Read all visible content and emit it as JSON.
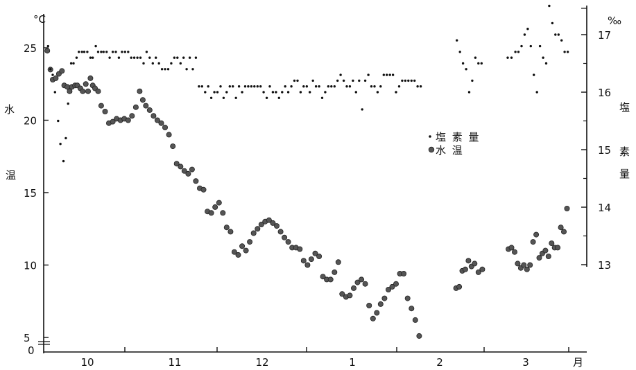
{
  "chart_data": {
    "type": "scatter",
    "x_axis": {
      "unit_label": "月",
      "ticks": [
        "10",
        "11",
        "12",
        "1",
        "2",
        "3"
      ]
    },
    "left_axis": {
      "title_chars": [
        "水",
        "温"
      ],
      "unit": "°C",
      "ticks": [
        "25",
        "20",
        "15",
        "10",
        "5",
        "0"
      ],
      "range": [
        5,
        25
      ]
    },
    "right_axis": {
      "title_chars": [
        "塩",
        "素",
        "量"
      ],
      "unit": "‰",
      "ticks": [
        "17",
        "16",
        "15",
        "14",
        "13"
      ],
      "range": [
        13,
        17
      ]
    },
    "legend": [
      {
        "symbol": "•",
        "label": "塩 素 量",
        "marker": "small-dot"
      },
      {
        "symbol": "●",
        "label": "水 温",
        "marker": "large-dot"
      }
    ],
    "colors": {
      "chlorinity": "#111111",
      "water_temp": "#555555"
    },
    "water_temperature": [
      [
        0.2,
        24.8
      ],
      [
        0.6,
        23.5
      ],
      [
        0.9,
        22.8
      ],
      [
        1.3,
        22.9
      ],
      [
        1.7,
        23.2
      ],
      [
        2.1,
        23.4
      ],
      [
        2.4,
        22.4
      ],
      [
        2.8,
        22.3
      ],
      [
        3.1,
        22.0
      ],
      [
        3.4,
        22.3
      ],
      [
        3.8,
        22.4
      ],
      [
        4.1,
        22.4
      ],
      [
        4.5,
        22.2
      ],
      [
        4.8,
        22.0
      ],
      [
        5.2,
        22.5
      ],
      [
        5.5,
        22.0
      ],
      [
        5.8,
        22.9
      ],
      [
        6.1,
        22.4
      ],
      [
        6.4,
        22.2
      ],
      [
        6.8,
        22.0
      ],
      [
        7.2,
        21.0
      ],
      [
        7.7,
        20.6
      ],
      [
        8.2,
        19.8
      ],
      [
        8.7,
        19.9
      ],
      [
        9.2,
        20.1
      ],
      [
        9.7,
        20.0
      ],
      [
        10.2,
        20.1
      ],
      [
        10.7,
        20.0
      ],
      [
        11.2,
        20.3
      ],
      [
        11.7,
        20.9
      ],
      [
        12.2,
        22.0
      ],
      [
        12.6,
        21.4
      ],
      [
        13.0,
        21.0
      ],
      [
        13.5,
        20.7
      ],
      [
        14.0,
        20.3
      ],
      [
        14.5,
        20.0
      ],
      [
        15.0,
        19.8
      ],
      [
        15.5,
        19.5
      ],
      [
        16.0,
        19.0
      ],
      [
        16.5,
        18.2
      ],
      [
        17.0,
        17.0
      ],
      [
        17.5,
        16.8
      ],
      [
        18.0,
        16.5
      ],
      [
        18.5,
        16.3
      ],
      [
        19.0,
        16.6
      ],
      [
        19.5,
        15.8
      ],
      [
        20.0,
        15.3
      ],
      [
        20.5,
        15.2
      ],
      [
        21.0,
        13.7
      ],
      [
        21.5,
        13.6
      ],
      [
        22.0,
        14.0
      ],
      [
        22.5,
        14.3
      ],
      [
        23.0,
        13.6
      ],
      [
        23.5,
        12.6
      ],
      [
        24.0,
        12.3
      ],
      [
        24.5,
        10.9
      ],
      [
        25.0,
        10.7
      ],
      [
        25.5,
        11.3
      ],
      [
        26.0,
        11.0
      ],
      [
        26.5,
        11.6
      ],
      [
        27.0,
        12.2
      ],
      [
        27.5,
        12.5
      ],
      [
        28.0,
        12.8
      ],
      [
        28.5,
        13.0
      ],
      [
        29.0,
        13.1
      ],
      [
        29.5,
        12.9
      ],
      [
        30.0,
        12.7
      ],
      [
        30.5,
        12.3
      ],
      [
        31.0,
        11.9
      ],
      [
        31.5,
        11.6
      ],
      [
        32.0,
        11.2
      ],
      [
        32.5,
        11.2
      ],
      [
        33.0,
        11.1
      ],
      [
        33.5,
        10.3
      ],
      [
        34.0,
        10.0
      ],
      [
        34.5,
        10.4
      ],
      [
        35.0,
        10.8
      ],
      [
        35.5,
        10.6
      ],
      [
        36.0,
        9.2
      ],
      [
        36.5,
        9.0
      ],
      [
        37.0,
        9.0
      ],
      [
        37.5,
        9.5
      ],
      [
        38.0,
        10.2
      ],
      [
        38.5,
        8.0
      ],
      [
        39.0,
        7.8
      ],
      [
        39.5,
        7.9
      ],
      [
        40.0,
        8.4
      ],
      [
        40.5,
        8.8
      ],
      [
        41.0,
        9.0
      ],
      [
        41.5,
        8.7
      ],
      [
        42.0,
        7.2
      ],
      [
        42.5,
        6.3
      ],
      [
        43.0,
        6.7
      ],
      [
        43.5,
        7.3
      ],
      [
        44.0,
        7.7
      ],
      [
        44.5,
        8.3
      ],
      [
        45.0,
        8.5
      ],
      [
        45.5,
        8.7
      ],
      [
        46.0,
        9.4
      ],
      [
        46.5,
        9.4
      ],
      [
        47.0,
        7.7
      ],
      [
        47.5,
        7.0
      ],
      [
        48.0,
        6.2
      ],
      [
        48.5,
        5.1
      ],
      [
        53.3,
        8.4
      ],
      [
        53.7,
        8.5
      ],
      [
        54.1,
        9.6
      ],
      [
        54.5,
        9.7
      ],
      [
        54.9,
        10.3
      ],
      [
        55.3,
        9.9
      ],
      [
        55.7,
        10.1
      ],
      [
        56.2,
        9.5
      ],
      [
        56.7,
        9.7
      ],
      [
        60.1,
        11.1
      ],
      [
        60.5,
        11.2
      ],
      [
        60.9,
        10.9
      ],
      [
        61.3,
        10.1
      ],
      [
        61.7,
        9.8
      ],
      [
        62.1,
        10.0
      ],
      [
        62.5,
        9.7
      ],
      [
        62.9,
        10.0
      ],
      [
        63.3,
        11.6
      ],
      [
        63.7,
        12.1
      ],
      [
        64.1,
        10.5
      ],
      [
        64.5,
        10.8
      ],
      [
        64.9,
        11.0
      ],
      [
        65.3,
        10.6
      ],
      [
        65.7,
        11.5
      ],
      [
        66.1,
        11.2
      ],
      [
        66.5,
        11.2
      ],
      [
        66.9,
        12.6
      ],
      [
        67.3,
        12.3
      ],
      [
        67.7,
        13.9
      ]
    ],
    "chlorinity": [
      [
        0.3,
        16.8
      ],
      [
        0.6,
        16.4
      ],
      [
        0.9,
        16.3
      ],
      [
        1.2,
        16.0
      ],
      [
        1.6,
        15.5
      ],
      [
        1.9,
        15.1
      ],
      [
        2.3,
        14.8
      ],
      [
        2.6,
        15.2
      ],
      [
        2.9,
        15.8
      ],
      [
        3.3,
        16.5
      ],
      [
        3.6,
        16.5
      ],
      [
        4.0,
        16.6
      ],
      [
        4.3,
        16.7
      ],
      [
        4.7,
        16.7
      ],
      [
        5.0,
        16.7
      ],
      [
        5.4,
        16.7
      ],
      [
        5.8,
        16.6
      ],
      [
        6.1,
        16.6
      ],
      [
        6.5,
        16.8
      ],
      [
        6.8,
        16.7
      ],
      [
        7.2,
        16.7
      ],
      [
        7.5,
        16.7
      ],
      [
        7.9,
        16.7
      ],
      [
        8.3,
        16.6
      ],
      [
        8.7,
        16.7
      ],
      [
        9.1,
        16.7
      ],
      [
        9.5,
        16.6
      ],
      [
        9.9,
        16.7
      ],
      [
        10.3,
        16.7
      ],
      [
        10.7,
        16.7
      ],
      [
        11.1,
        16.6
      ],
      [
        11.5,
        16.6
      ],
      [
        11.9,
        16.6
      ],
      [
        12.3,
        16.6
      ],
      [
        12.7,
        16.5
      ],
      [
        13.1,
        16.7
      ],
      [
        13.5,
        16.6
      ],
      [
        13.9,
        16.5
      ],
      [
        14.3,
        16.6
      ],
      [
        14.7,
        16.5
      ],
      [
        15.1,
        16.4
      ],
      [
        15.5,
        16.4
      ],
      [
        15.9,
        16.4
      ],
      [
        16.3,
        16.5
      ],
      [
        16.7,
        16.6
      ],
      [
        17.1,
        16.6
      ],
      [
        17.5,
        16.5
      ],
      [
        17.9,
        16.6
      ],
      [
        18.3,
        16.4
      ],
      [
        18.7,
        16.6
      ],
      [
        19.1,
        16.4
      ],
      [
        19.5,
        16.6
      ],
      [
        19.9,
        16.1
      ],
      [
        20.3,
        16.1
      ],
      [
        20.7,
        16.0
      ],
      [
        21.1,
        16.1
      ],
      [
        21.5,
        15.9
      ],
      [
        21.9,
        16.0
      ],
      [
        22.3,
        16.0
      ],
      [
        22.7,
        16.1
      ],
      [
        23.1,
        15.9
      ],
      [
        23.5,
        16.0
      ],
      [
        23.9,
        16.1
      ],
      [
        24.3,
        16.1
      ],
      [
        24.7,
        15.9
      ],
      [
        25.1,
        16.1
      ],
      [
        25.5,
        16.0
      ],
      [
        25.9,
        16.1
      ],
      [
        26.3,
        16.1
      ],
      [
        26.7,
        16.1
      ],
      [
        27.1,
        16.1
      ],
      [
        27.5,
        16.1
      ],
      [
        27.9,
        16.1
      ],
      [
        28.3,
        16.0
      ],
      [
        28.7,
        15.9
      ],
      [
        29.1,
        16.1
      ],
      [
        29.5,
        16.0
      ],
      [
        29.9,
        16.0
      ],
      [
        30.3,
        15.9
      ],
      [
        30.7,
        16.0
      ],
      [
        31.1,
        16.1
      ],
      [
        31.5,
        16.0
      ],
      [
        31.9,
        16.1
      ],
      [
        32.3,
        16.2
      ],
      [
        32.7,
        16.2
      ],
      [
        33.1,
        16.0
      ],
      [
        33.5,
        16.1
      ],
      [
        33.9,
        16.1
      ],
      [
        34.3,
        16.0
      ],
      [
        34.7,
        16.2
      ],
      [
        35.1,
        16.1
      ],
      [
        35.5,
        16.1
      ],
      [
        35.9,
        15.9
      ],
      [
        36.3,
        16.0
      ],
      [
        36.7,
        16.1
      ],
      [
        37.1,
        16.1
      ],
      [
        37.5,
        16.1
      ],
      [
        37.9,
        16.2
      ],
      [
        38.3,
        16.3
      ],
      [
        38.7,
        16.2
      ],
      [
        39.1,
        16.1
      ],
      [
        39.5,
        16.1
      ],
      [
        39.9,
        16.2
      ],
      [
        40.3,
        16.0
      ],
      [
        40.7,
        16.2
      ],
      [
        41.1,
        15.7
      ],
      [
        41.5,
        16.2
      ],
      [
        41.9,
        16.3
      ],
      [
        42.3,
        16.1
      ],
      [
        42.7,
        16.1
      ],
      [
        43.1,
        16.0
      ],
      [
        43.5,
        16.1
      ],
      [
        43.9,
        16.3
      ],
      [
        44.3,
        16.3
      ],
      [
        44.7,
        16.3
      ],
      [
        45.1,
        16.3
      ],
      [
        45.5,
        16.0
      ],
      [
        45.9,
        16.1
      ],
      [
        46.3,
        16.2
      ],
      [
        46.7,
        16.2
      ],
      [
        47.1,
        16.2
      ],
      [
        47.5,
        16.2
      ],
      [
        47.9,
        16.2
      ],
      [
        48.3,
        16.1
      ],
      [
        48.7,
        16.1
      ],
      [
        53.4,
        16.9
      ],
      [
        53.8,
        16.7
      ],
      [
        54.2,
        16.5
      ],
      [
        54.6,
        16.4
      ],
      [
        55.0,
        16.0
      ],
      [
        55.4,
        16.2
      ],
      [
        55.8,
        16.6
      ],
      [
        56.2,
        16.5
      ],
      [
        56.6,
        16.5
      ],
      [
        60.0,
        16.6
      ],
      [
        60.5,
        16.6
      ],
      [
        61.0,
        16.7
      ],
      [
        61.4,
        16.7
      ],
      [
        61.8,
        16.8
      ],
      [
        62.2,
        17.0
      ],
      [
        62.6,
        17.1
      ],
      [
        63.0,
        16.8
      ],
      [
        63.4,
        16.3
      ],
      [
        63.8,
        16.0
      ],
      [
        64.2,
        16.8
      ],
      [
        64.6,
        16.6
      ],
      [
        65.0,
        16.5
      ],
      [
        65.4,
        17.5
      ],
      [
        65.8,
        17.2
      ],
      [
        66.2,
        17.0
      ],
      [
        66.6,
        17.0
      ],
      [
        67.0,
        16.9
      ],
      [
        67.4,
        16.7
      ],
      [
        67.8,
        16.7
      ]
    ]
  }
}
